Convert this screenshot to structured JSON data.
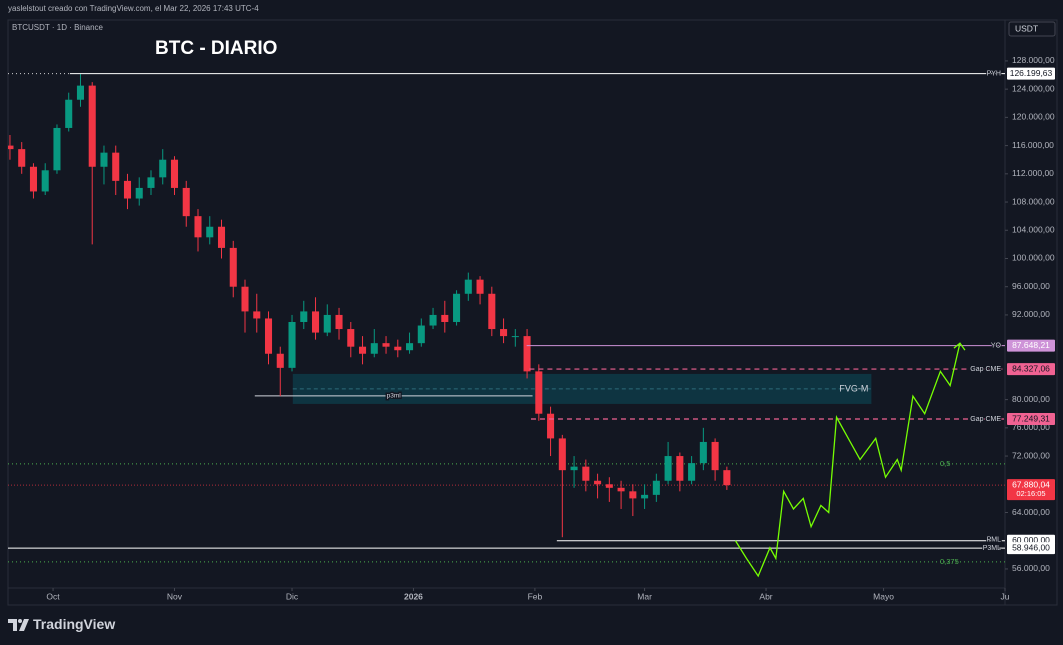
{
  "chart_data": {
    "type": "candlestick",
    "watermark": "yaslelstout creado con TradingView.com, el Mar 22, 2026 17:43 UTC-4",
    "symbol": "BTCUSDT · 1D · Binance",
    "title": "BTC - DIARIO",
    "currency": "USDT",
    "brand": "TradingView",
    "up_color": "#089981",
    "down_color": "#f23645",
    "grid": false,
    "xlim": [
      -11.5,
      243
    ],
    "ylim": [
      53300,
      133800
    ],
    "xticks": [
      {
        "value": 0,
        "label": "Oct"
      },
      {
        "value": 31,
        "label": "Nov"
      },
      {
        "value": 61,
        "label": "Dic"
      },
      {
        "value": 92,
        "label": "2026"
      },
      {
        "value": 123,
        "label": "Feb"
      },
      {
        "value": 151,
        "label": "Mar"
      },
      {
        "value": 182,
        "label": "Abr"
      },
      {
        "value": 212,
        "label": "Mayo"
      },
      {
        "value": 243,
        "label": "Ju"
      }
    ],
    "yticks": [
      {
        "value": 128000,
        "label": "128.000,00"
      },
      {
        "value": 124000,
        "label": "124.000,00"
      },
      {
        "value": 120000,
        "label": "120.000,00"
      },
      {
        "value": 116000,
        "label": "116.000,00"
      },
      {
        "value": 112000,
        "label": "112.000,00"
      },
      {
        "value": 108000,
        "label": "108.000,00"
      },
      {
        "value": 104000,
        "label": "104.000,00"
      },
      {
        "value": 100000,
        "label": "100.000,00"
      },
      {
        "value": 96000,
        "label": "96.000,00"
      },
      {
        "value": 92000,
        "label": "92.000,00"
      },
      {
        "value": 80000,
        "label": "80.000,00"
      },
      {
        "value": 76000,
        "label": "76.000,00"
      },
      {
        "value": 72000,
        "label": "72.000,00"
      },
      {
        "value": 64000,
        "label": "64.000,00"
      },
      {
        "value": 56000,
        "label": "56.000,00"
      }
    ],
    "x": [
      -11,
      -8,
      -5,
      -2,
      1,
      4,
      7,
      10,
      13,
      16,
      19,
      22,
      25,
      28,
      31,
      34,
      37,
      40,
      43,
      46,
      49,
      52,
      55,
      58,
      61,
      64,
      67,
      70,
      73,
      76,
      79,
      82,
      85,
      88,
      91,
      94,
      97,
      100,
      103,
      106,
      109,
      112,
      115,
      118,
      121,
      124,
      127,
      130,
      133,
      136,
      139,
      142,
      145,
      148,
      151,
      154,
      157,
      160,
      163,
      166,
      169,
      172
    ],
    "open": [
      116000,
      115500,
      113000,
      109500,
      112500,
      118500,
      122500,
      124500,
      113000,
      115000,
      111000,
      108500,
      110000,
      111500,
      114000,
      110000,
      106000,
      103000,
      104500,
      101500,
      96000,
      92500,
      91500,
      86500,
      84500,
      91000,
      92500,
      89500,
      92000,
      90000,
      87500,
      86500,
      88000,
      87500,
      87000,
      88000,
      90500,
      92000,
      91000,
      95000,
      97000,
      95000,
      90000,
      89000,
      89000,
      84000,
      78000,
      74500,
      70000,
      70500,
      68500,
      68000,
      67500,
      67000,
      66000,
      66500,
      68500,
      72000,
      68500,
      71000,
      74000,
      70000
    ],
    "high": [
      117500,
      116500,
      113500,
      113500,
      119000,
      123500,
      126200,
      125000,
      116000,
      116000,
      112000,
      111500,
      112500,
      115500,
      114500,
      111000,
      107000,
      106000,
      105500,
      102500,
      97000,
      95000,
      92500,
      87500,
      92000,
      94000,
      94500,
      93500,
      93000,
      91000,
      89000,
      90000,
      89000,
      88500,
      89500,
      91500,
      93000,
      94000,
      95500,
      98000,
      97500,
      96000,
      91500,
      90000,
      90000,
      85000,
      79000,
      75000,
      72000,
      71500,
      69500,
      69000,
      68500,
      68000,
      68000,
      69500,
      74000,
      72500,
      72000,
      76000,
      74500,
      70500
    ],
    "low": [
      114000,
      112000,
      108500,
      109000,
      112000,
      118000,
      121500,
      102000,
      110500,
      109000,
      107000,
      107500,
      109000,
      110500,
      109000,
      104500,
      101000,
      102000,
      100000,
      94500,
      89500,
      89500,
      85000,
      80500,
      84000,
      90000,
      88500,
      89000,
      88500,
      86000,
      85000,
      86000,
      86500,
      86000,
      86500,
      87500,
      90000,
      89500,
      90500,
      94000,
      93500,
      89000,
      88000,
      87500,
      83000,
      77000,
      72000,
      60500,
      67500,
      67000,
      66000,
      65500,
      64500,
      63500,
      64500,
      65500,
      68000,
      67000,
      68000,
      70000,
      68500,
      67200
    ],
    "close": [
      115500,
      113000,
      109500,
      112500,
      118500,
      122500,
      124500,
      113000,
      115000,
      111000,
      108500,
      110000,
      111500,
      114000,
      110000,
      106000,
      103000,
      104500,
      101500,
      96000,
      92500,
      91500,
      86500,
      84500,
      91000,
      92500,
      89500,
      92000,
      90000,
      87500,
      86500,
      88000,
      87500,
      87000,
      88000,
      90500,
      92000,
      91000,
      95000,
      97000,
      95000,
      90000,
      89000,
      89000,
      84000,
      78000,
      74500,
      70000,
      70500,
      68500,
      68000,
      67500,
      67000,
      66000,
      66500,
      68500,
      72000,
      68500,
      71000,
      74000,
      70000,
      67880.04
    ],
    "levels": [
      {
        "name": "PYH",
        "value": 126199.63,
        "label": "126.199,63",
        "color": "#ffffff",
        "text_color": "#131722",
        "style": "solid",
        "from": 4.3
      },
      {
        "name": "YO",
        "value": 87648.21,
        "label": "87.648,21",
        "color": "#ce93d8",
        "text_color": "#ffffff",
        "style": "solid",
        "from": 120.9
      },
      {
        "name": "Gap CME",
        "value": 84327.06,
        "label": "84.327,06",
        "color": "#f06292",
        "text_color": "#131722",
        "style": "dashed",
        "from": 121.6
      },
      {
        "name": "Gap CME",
        "value": 77249.31,
        "label": "77.249,31",
        "color": "#f06292",
        "text_color": "#131722",
        "style": "dashed",
        "from": 122
      },
      {
        "name": "PML",
        "value": 60000,
        "label": "60.000,00",
        "color": "#ffffff",
        "text_color": "#131722",
        "style": "solid",
        "from": 128.6
      },
      {
        "name": "P3ML",
        "value": 58946,
        "label": "58.946,00",
        "color": "#ffffff",
        "text_color": "#131722",
        "style": "solid",
        "from": -11.5
      }
    ],
    "fib_levels": [
      {
        "name": "0,5",
        "value": 70886,
        "color": "#4caf50"
      },
      {
        "name": "0,375",
        "value": 57000,
        "color": "#4caf50"
      }
    ],
    "last_price": {
      "value": 67880.04,
      "label": "67.880,04",
      "countdown": "02:16:05",
      "color": "#f23645"
    },
    "zone": {
      "name": "FVG-M",
      "top": 83641,
      "bottom": 79389,
      "from": 61.2,
      "to": 208.9,
      "color": "#0e3a47"
    },
    "p3ml": {
      "name": "p3ml",
      "value": 80523,
      "from": 51.5,
      "to": 122.4
    },
    "projection": {
      "color": "#76ff03",
      "x": [
        174.2,
        177,
        180,
        183,
        184.5,
        186.5,
        189,
        191.5,
        193.5,
        196,
        198,
        200,
        203,
        206,
        210,
        212.5,
        215.5,
        216.5,
        219.5,
        222.5,
        226.5,
        229,
        231.5
      ],
      "values": [
        60000,
        57500,
        55000,
        59000,
        57500,
        67000,
        64500,
        66000,
        62000,
        65000,
        64000,
        77500,
        74500,
        71500,
        74500,
        69000,
        71500,
        70000,
        80500,
        78000,
        84000,
        82000,
        88000
      ]
    }
  }
}
